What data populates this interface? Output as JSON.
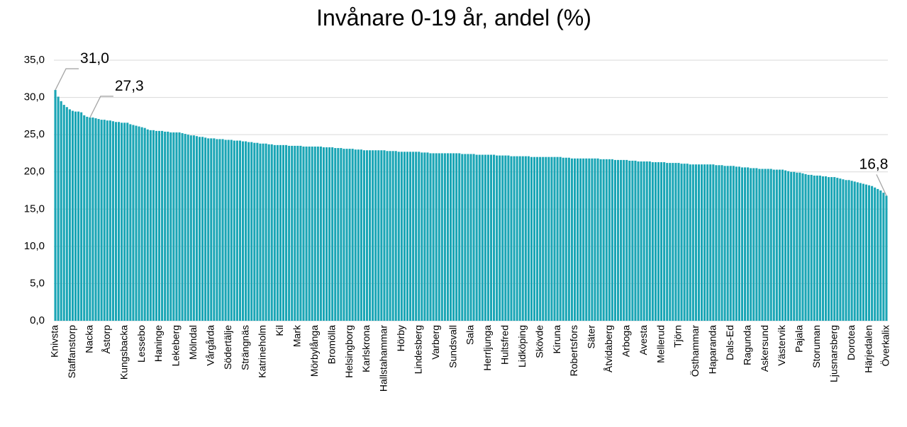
{
  "chart_data": {
    "type": "bar",
    "title": "Invånare 0-19 år, andel (%)",
    "color": "#1aa5b5",
    "grid": true,
    "ylim": [
      0,
      35
    ],
    "yticks": [
      {
        "value": 0,
        "label": "0,0"
      },
      {
        "value": 5,
        "label": "5,0"
      },
      {
        "value": 10,
        "label": "10,0"
      },
      {
        "value": 15,
        "label": "15,0"
      },
      {
        "value": 20,
        "label": "20,0"
      },
      {
        "value": 25,
        "label": "25,0"
      },
      {
        "value": 30,
        "label": "30,0"
      },
      {
        "value": 35,
        "label": "35,0"
      }
    ],
    "categories": [
      "Knivsta",
      null,
      null,
      null,
      null,
      null,
      "Staffanstorp",
      null,
      null,
      null,
      null,
      null,
      "Nacka",
      null,
      null,
      null,
      null,
      null,
      "Åstorp",
      null,
      null,
      null,
      null,
      null,
      "Kungsbacka",
      null,
      null,
      null,
      null,
      null,
      "Lessebo",
      null,
      null,
      null,
      null,
      null,
      "Haninge",
      null,
      null,
      null,
      null,
      null,
      "Lekeberg",
      null,
      null,
      null,
      null,
      null,
      "Mölndal",
      null,
      null,
      null,
      null,
      null,
      "Vårgårda",
      null,
      null,
      null,
      null,
      null,
      "Södertälje",
      null,
      null,
      null,
      null,
      null,
      "Strängnäs",
      null,
      null,
      null,
      null,
      null,
      "Katrineholm",
      null,
      null,
      null,
      null,
      null,
      "Kil",
      null,
      null,
      null,
      null,
      null,
      "Mark",
      null,
      null,
      null,
      null,
      null,
      "Mörbylånga",
      null,
      null,
      null,
      null,
      null,
      "Bromölla",
      null,
      null,
      null,
      null,
      null,
      "Helsingborg",
      null,
      null,
      null,
      null,
      null,
      "Karlskrona",
      null,
      null,
      null,
      null,
      null,
      "Hallstahammar",
      null,
      null,
      null,
      null,
      null,
      "Hörby",
      null,
      null,
      null,
      null,
      null,
      "Lindesberg",
      null,
      null,
      null,
      null,
      null,
      "Varberg",
      null,
      null,
      null,
      null,
      null,
      "Sundsvall",
      null,
      null,
      null,
      null,
      null,
      "Sala",
      null,
      null,
      null,
      null,
      null,
      "Herrljunga",
      null,
      null,
      null,
      null,
      null,
      "Hultsfred",
      null,
      null,
      null,
      null,
      null,
      "Lidköping",
      null,
      null,
      null,
      null,
      null,
      "Skövde",
      null,
      null,
      null,
      null,
      null,
      "Kiruna",
      null,
      null,
      null,
      null,
      null,
      "Robertsfors",
      null,
      null,
      null,
      null,
      null,
      "Säter",
      null,
      null,
      null,
      null,
      null,
      "Åtvidaberg",
      null,
      null,
      null,
      null,
      null,
      "Arboga",
      null,
      null,
      null,
      null,
      null,
      "Avesta",
      null,
      null,
      null,
      null,
      null,
      "Mellerud",
      null,
      null,
      null,
      null,
      null,
      "Tjörn",
      null,
      null,
      null,
      null,
      null,
      "Östhammar",
      null,
      null,
      null,
      null,
      null,
      "Haparanda",
      null,
      null,
      null,
      null,
      null,
      "Dals-Ed",
      null,
      null,
      null,
      null,
      null,
      "Ragunda",
      null,
      null,
      null,
      null,
      null,
      "Askersund",
      null,
      null,
      null,
      null,
      null,
      "Västervik",
      null,
      null,
      null,
      null,
      null,
      "Pajala",
      null,
      null,
      null,
      null,
      null,
      "Storuman",
      null,
      null,
      null,
      null,
      null,
      "Ljusnarsberg",
      null,
      null,
      null,
      null,
      null,
      "Dorotea",
      null,
      null,
      null,
      null,
      null,
      "Härjedalen",
      null,
      null,
      null,
      null,
      null,
      "Överkalix"
    ],
    "values": [
      31.0,
      30.1,
      29.5,
      29.0,
      28.7,
      28.4,
      28.2,
      28.1,
      28.1,
      28.0,
      27.6,
      27.4,
      27.3,
      27.3,
      27.2,
      27.1,
      27.0,
      27.0,
      26.9,
      26.9,
      26.8,
      26.7,
      26.7,
      26.6,
      26.6,
      26.6,
      26.4,
      26.3,
      26.2,
      26.1,
      26.0,
      25.9,
      25.7,
      25.6,
      25.6,
      25.5,
      25.5,
      25.5,
      25.4,
      25.4,
      25.3,
      25.3,
      25.3,
      25.3,
      25.2,
      25.1,
      25.0,
      24.9,
      24.9,
      24.8,
      24.7,
      24.7,
      24.6,
      24.5,
      24.5,
      24.5,
      24.4,
      24.4,
      24.4,
      24.3,
      24.3,
      24.3,
      24.2,
      24.2,
      24.2,
      24.1,
      24.1,
      24.0,
      24.0,
      23.9,
      23.9,
      23.8,
      23.8,
      23.8,
      23.7,
      23.7,
      23.6,
      23.6,
      23.6,
      23.6,
      23.6,
      23.5,
      23.5,
      23.5,
      23.5,
      23.5,
      23.4,
      23.4,
      23.4,
      23.4,
      23.4,
      23.4,
      23.4,
      23.3,
      23.3,
      23.3,
      23.3,
      23.2,
      23.2,
      23.2,
      23.1,
      23.1,
      23.1,
      23.1,
      23.0,
      23.0,
      23.0,
      22.9,
      22.9,
      22.9,
      22.9,
      22.9,
      22.9,
      22.9,
      22.9,
      22.8,
      22.8,
      22.8,
      22.8,
      22.7,
      22.7,
      22.7,
      22.7,
      22.7,
      22.7,
      22.7,
      22.7,
      22.6,
      22.6,
      22.6,
      22.5,
      22.5,
      22.5,
      22.5,
      22.5,
      22.5,
      22.5,
      22.5,
      22.5,
      22.5,
      22.5,
      22.4,
      22.4,
      22.4,
      22.4,
      22.4,
      22.3,
      22.3,
      22.3,
      22.3,
      22.3,
      22.3,
      22.3,
      22.2,
      22.2,
      22.2,
      22.2,
      22.2,
      22.1,
      22.1,
      22.1,
      22.1,
      22.1,
      22.1,
      22.1,
      22.0,
      22.0,
      22.0,
      22.0,
      22.0,
      22.0,
      22.0,
      22.0,
      22.0,
      22.0,
      22.0,
      21.9,
      21.9,
      21.9,
      21.8,
      21.8,
      21.8,
      21.8,
      21.8,
      21.8,
      21.8,
      21.8,
      21.8,
      21.8,
      21.7,
      21.7,
      21.7,
      21.7,
      21.7,
      21.6,
      21.6,
      21.6,
      21.6,
      21.6,
      21.5,
      21.5,
      21.5,
      21.4,
      21.4,
      21.4,
      21.4,
      21.4,
      21.3,
      21.3,
      21.3,
      21.3,
      21.3,
      21.2,
      21.2,
      21.2,
      21.2,
      21.2,
      21.1,
      21.1,
      21.1,
      21.0,
      21.0,
      21.0,
      21.0,
      21.0,
      21.0,
      21.0,
      21.0,
      21.0,
      20.9,
      20.9,
      20.9,
      20.8,
      20.8,
      20.8,
      20.8,
      20.7,
      20.7,
      20.6,
      20.6,
      20.6,
      20.5,
      20.5,
      20.5,
      20.4,
      20.4,
      20.4,
      20.4,
      20.4,
      20.3,
      20.3,
      20.3,
      20.3,
      20.2,
      20.1,
      20.0,
      20.0,
      19.9,
      19.9,
      19.8,
      19.7,
      19.6,
      19.6,
      19.5,
      19.5,
      19.5,
      19.4,
      19.4,
      19.3,
      19.3,
      19.3,
      19.2,
      19.1,
      19.0,
      18.9,
      18.9,
      18.8,
      18.7,
      18.6,
      18.5,
      18.4,
      18.3,
      18.2,
      18.1,
      17.9,
      17.7,
      17.5,
      17.2,
      16.8
    ],
    "value_labels": [
      "31,0",
      null,
      null,
      null,
      null,
      null,
      null,
      null,
      null,
      null,
      null,
      null,
      "27,3",
      null,
      null,
      null,
      null,
      null,
      null,
      null,
      null,
      null,
      null,
      null,
      null,
      null,
      null,
      null,
      null,
      null,
      null,
      null,
      null,
      null,
      null,
      null,
      null,
      null,
      null,
      null,
      null,
      null,
      null,
      null,
      null,
      null,
      null,
      null,
      null,
      null,
      null,
      null,
      null,
      null,
      null,
      null,
      null,
      null,
      null,
      null,
      null,
      null,
      null,
      null,
      null,
      null,
      null,
      null,
      null,
      null,
      null,
      null,
      null,
      null,
      null,
      null,
      null,
      null,
      null,
      null,
      null,
      null,
      null,
      null,
      null,
      null,
      null,
      null,
      null,
      null,
      null,
      null,
      null,
      null,
      null,
      null,
      null,
      null,
      null,
      null,
      null,
      null,
      null,
      null,
      null,
      null,
      null,
      null,
      null,
      null,
      null,
      null,
      null,
      null,
      null,
      null,
      null,
      null,
      null,
      null,
      null,
      null,
      null,
      null,
      null,
      null,
      null,
      null,
      null,
      null,
      null,
      null,
      null,
      null,
      null,
      null,
      null,
      null,
      null,
      null,
      null,
      null,
      null,
      null,
      null,
      null,
      null,
      null,
      null,
      null,
      null,
      null,
      null,
      null,
      null,
      null,
      null,
      null,
      null,
      null,
      null,
      null,
      null,
      null,
      null,
      null,
      null,
      null,
      null,
      null,
      null,
      null,
      null,
      null,
      null,
      null,
      null,
      null,
      null,
      null,
      null,
      null,
      null,
      null,
      null,
      null,
      null,
      null,
      null,
      null,
      null,
      null,
      null,
      null,
      null,
      null,
      null,
      null,
      null,
      null,
      null,
      null,
      null,
      null,
      null,
      null,
      null,
      null,
      null,
      null,
      null,
      null,
      null,
      null,
      null,
      null,
      null,
      null,
      null,
      null,
      null,
      null,
      null,
      null,
      null,
      null,
      null,
      null,
      null,
      null,
      null,
      null,
      null,
      null,
      null,
      null,
      null,
      null,
      null,
      null,
      null,
      null,
      null,
      null,
      null,
      null,
      null,
      null,
      null,
      null,
      null,
      null,
      null,
      null,
      null,
      null,
      null,
      null,
      null,
      null,
      null,
      null,
      null,
      null,
      null,
      null,
      null,
      null,
      null,
      null,
      null,
      null,
      null,
      null,
      null,
      null,
      null,
      null,
      null,
      null,
      null,
      null,
      null,
      null,
      null,
      null,
      null,
      null,
      "16,8"
    ]
  }
}
